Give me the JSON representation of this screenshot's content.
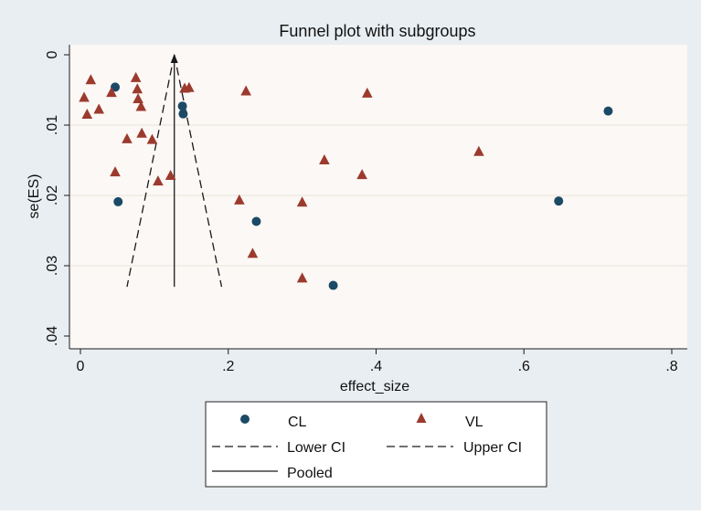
{
  "chart_data": {
    "type": "scatter",
    "title": "Funnel plot with subgroups",
    "xlabel": "effect_size",
    "ylabel": "se(ES)",
    "xlim": [
      0,
      0.8
    ],
    "ylim": [
      0,
      0.04
    ],
    "y_reversed": true,
    "grid": "horizontal",
    "x_ticks": [
      0,
      0.2,
      0.4,
      0.6,
      0.8
    ],
    "x_tick_labels": [
      "0",
      ".2",
      ".4",
      ".6",
      ".8"
    ],
    "y_ticks": [
      0,
      0.01,
      0.02,
      0.03,
      0.04
    ],
    "y_tick_labels": [
      "0",
      ".01",
      ".02",
      ".03",
      ".04"
    ],
    "legend_position": "bottom",
    "colors": {
      "page_background": "#e9eef2",
      "plot_background": "#fbf8f5",
      "gridline": "#e8e4d9",
      "cl_marker": "#1c4a66",
      "vl_marker": "#9c3a2e",
      "lines": "#1a1a1a"
    },
    "series": [
      {
        "name": "CL",
        "marker": "circle",
        "points": [
          {
            "x": 0.047,
            "y": 0.0046
          },
          {
            "x": 0.051,
            "y": 0.0209
          },
          {
            "x": 0.138,
            "y": 0.0073
          },
          {
            "x": 0.139,
            "y": 0.0084
          },
          {
            "x": 0.238,
            "y": 0.0237
          },
          {
            "x": 0.342,
            "y": 0.0328
          },
          {
            "x": 0.647,
            "y": 0.0208
          },
          {
            "x": 0.714,
            "y": 0.008
          }
        ]
      },
      {
        "name": "VL",
        "marker": "triangle",
        "points": [
          {
            "x": 0.005,
            "y": 0.0061
          },
          {
            "x": 0.009,
            "y": 0.0085
          },
          {
            "x": 0.014,
            "y": 0.0036
          },
          {
            "x": 0.025,
            "y": 0.0078
          },
          {
            "x": 0.042,
            "y": 0.0054
          },
          {
            "x": 0.047,
            "y": 0.0167
          },
          {
            "x": 0.063,
            "y": 0.012
          },
          {
            "x": 0.075,
            "y": 0.0033
          },
          {
            "x": 0.077,
            "y": 0.0049
          },
          {
            "x": 0.078,
            "y": 0.0063
          },
          {
            "x": 0.082,
            "y": 0.0074
          },
          {
            "x": 0.083,
            "y": 0.0112
          },
          {
            "x": 0.097,
            "y": 0.0121
          },
          {
            "x": 0.105,
            "y": 0.018
          },
          {
            "x": 0.122,
            "y": 0.0172
          },
          {
            "x": 0.141,
            "y": 0.0048
          },
          {
            "x": 0.147,
            "y": 0.0047
          },
          {
            "x": 0.215,
            "y": 0.0207
          },
          {
            "x": 0.224,
            "y": 0.0052
          },
          {
            "x": 0.233,
            "y": 0.0283
          },
          {
            "x": 0.3,
            "y": 0.021
          },
          {
            "x": 0.3,
            "y": 0.0318
          },
          {
            "x": 0.33,
            "y": 0.015
          },
          {
            "x": 0.381,
            "y": 0.0171
          },
          {
            "x": 0.388,
            "y": 0.0055
          },
          {
            "x": 0.539,
            "y": 0.0138
          }
        ]
      }
    ],
    "pooled": {
      "name": "Pooled",
      "x": 0.127,
      "y_from": 0,
      "y_to": 0.033
    },
    "lower_ci": {
      "name": "Lower CI",
      "points": [
        [
          0.127,
          0
        ],
        [
          0.063,
          0.033
        ]
      ]
    },
    "upper_ci": {
      "name": "Upper CI",
      "points": [
        [
          0.127,
          0
        ],
        [
          0.191,
          0.033
        ]
      ]
    }
  }
}
